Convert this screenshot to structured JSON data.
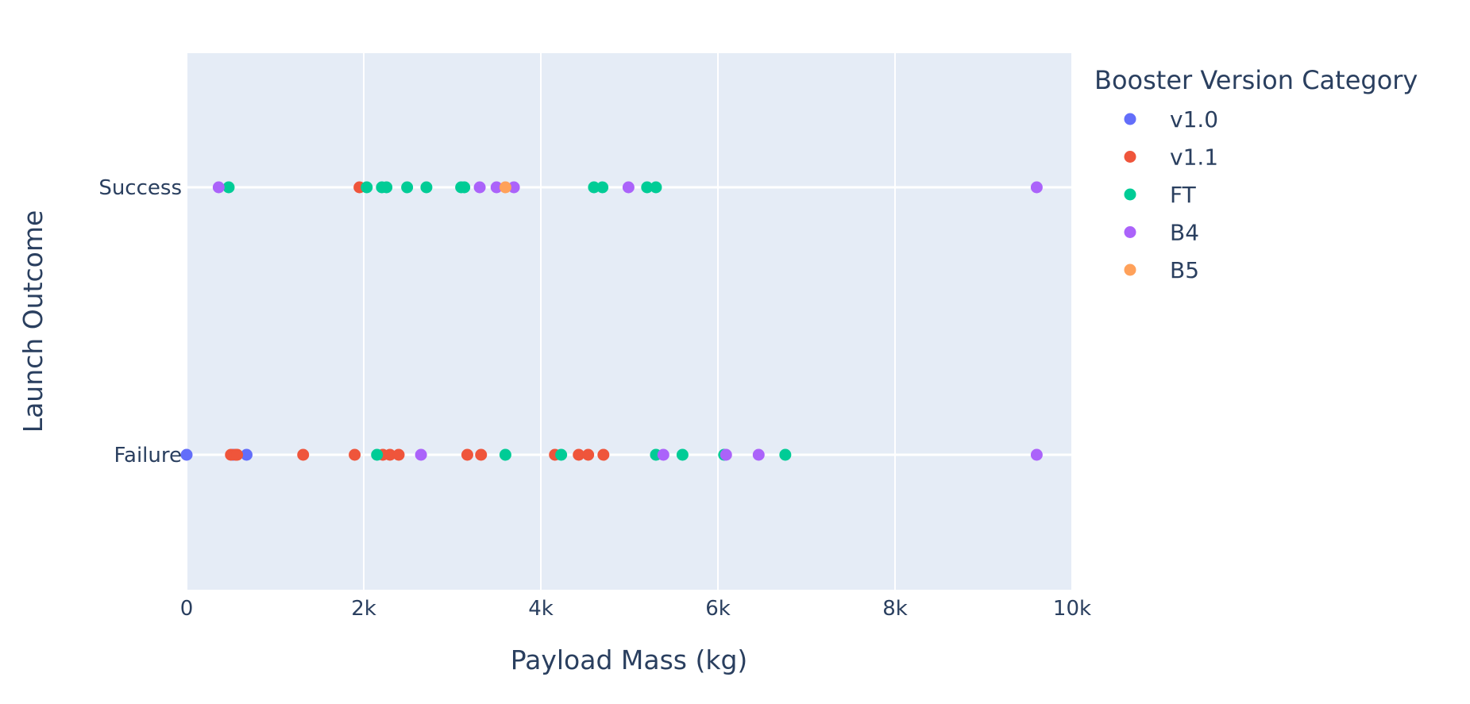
{
  "chart_data": {
    "type": "scatter",
    "title": "",
    "xlabel": "Payload Mass (kg)",
    "ylabel": "Launch Outcome",
    "xlim": [
      0,
      10000
    ],
    "x_ticks": [
      0,
      2000,
      4000,
      6000,
      8000,
      10000
    ],
    "x_tick_labels": [
      "0",
      "2k",
      "4k",
      "6k",
      "8k",
      "10k"
    ],
    "categories": [
      "Failure",
      "Success"
    ],
    "grid": true,
    "legend": {
      "title": "Booster Version Category",
      "position": "top-right"
    },
    "colors": {
      "plot_bg": "#e5ecf6",
      "grid": "#ffffff",
      "text": "#2a3f5f"
    },
    "series": [
      {
        "name": "v1.0",
        "color": "#636efa",
        "points": [
          {
            "x": 0,
            "y": "Failure"
          },
          {
            "x": 525,
            "y": "Failure"
          },
          {
            "x": 677,
            "y": "Failure"
          }
        ]
      },
      {
        "name": "v1.1",
        "color": "#ef553b",
        "points": [
          {
            "x": 500,
            "y": "Failure"
          },
          {
            "x": 553,
            "y": "Failure"
          },
          {
            "x": 570,
            "y": "Failure"
          },
          {
            "x": 1316,
            "y": "Failure"
          },
          {
            "x": 1898,
            "y": "Failure"
          },
          {
            "x": 2216,
            "y": "Failure"
          },
          {
            "x": 2296,
            "y": "Failure"
          },
          {
            "x": 2395,
            "y": "Failure"
          },
          {
            "x": 3170,
            "y": "Failure"
          },
          {
            "x": 3325,
            "y": "Failure"
          },
          {
            "x": 4159,
            "y": "Failure"
          },
          {
            "x": 4428,
            "y": "Failure"
          },
          {
            "x": 4535,
            "y": "Failure"
          },
          {
            "x": 4707,
            "y": "Failure"
          },
          {
            "x": 1952,
            "y": "Success"
          }
        ]
      },
      {
        "name": "FT",
        "color": "#00cc96",
        "points": [
          {
            "x": 2150,
            "y": "Failure"
          },
          {
            "x": 3600,
            "y": "Failure"
          },
          {
            "x": 4230,
            "y": "Failure"
          },
          {
            "x": 5300,
            "y": "Failure"
          },
          {
            "x": 5600,
            "y": "Failure"
          },
          {
            "x": 6070,
            "y": "Failure"
          },
          {
            "x": 6761,
            "y": "Failure"
          },
          {
            "x": 475,
            "y": "Success"
          },
          {
            "x": 2034,
            "y": "Success"
          },
          {
            "x": 2205,
            "y": "Success"
          },
          {
            "x": 2257,
            "y": "Success"
          },
          {
            "x": 2490,
            "y": "Success"
          },
          {
            "x": 2708,
            "y": "Success"
          },
          {
            "x": 3100,
            "y": "Success"
          },
          {
            "x": 3136,
            "y": "Success"
          },
          {
            "x": 4600,
            "y": "Success"
          },
          {
            "x": 4696,
            "y": "Success"
          },
          {
            "x": 5200,
            "y": "Success"
          },
          {
            "x": 5300,
            "y": "Success"
          }
        ]
      },
      {
        "name": "B4",
        "color": "#ab63fa",
        "points": [
          {
            "x": 2647,
            "y": "Failure"
          },
          {
            "x": 5384,
            "y": "Failure"
          },
          {
            "x": 6092,
            "y": "Failure"
          },
          {
            "x": 6460,
            "y": "Failure"
          },
          {
            "x": 9600,
            "y": "Failure"
          },
          {
            "x": 362,
            "y": "Success"
          },
          {
            "x": 3310,
            "y": "Success"
          },
          {
            "x": 3500,
            "y": "Success"
          },
          {
            "x": 3696,
            "y": "Success"
          },
          {
            "x": 4990,
            "y": "Success"
          },
          {
            "x": 9600,
            "y": "Success"
          }
        ]
      },
      {
        "name": "B5",
        "color": "#ffa15a",
        "points": [
          {
            "x": 3600,
            "y": "Success"
          }
        ]
      }
    ]
  }
}
